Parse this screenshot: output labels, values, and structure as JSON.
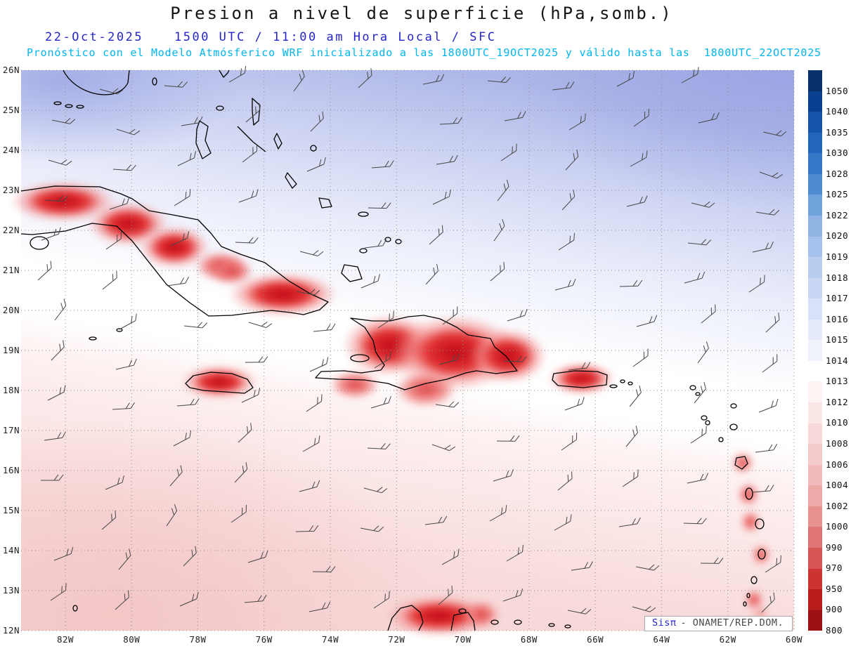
{
  "header": {
    "title": "Presion a nivel de superficie (hPa,somb.)",
    "date": "22-Oct-2025",
    "time": "1500 UTC / 11:00 am Hora Local / SFC",
    "forecast_prefix": "Pronóstico con el Modelo Atmósferico WRF inicializado a las 1800UTC_19OCT2025 y válido hasta las",
    "forecast_valid": "1800UTC_22OCT2025"
  },
  "map": {
    "lat_labels": [
      "26N",
      "25N",
      "24N",
      "23N",
      "22N",
      "21N",
      "20N",
      "19N",
      "18N",
      "17N",
      "16N",
      "15N",
      "14N",
      "13N",
      "12N"
    ],
    "lon_labels": [
      "82W",
      "80W",
      "78W",
      "76W",
      "74W",
      "72W",
      "70W",
      "68W",
      "66W",
      "64W",
      "62W",
      "60W"
    ],
    "units": "hPa"
  },
  "colorbar": {
    "labels": [
      1050,
      1040,
      1035,
      1030,
      1028,
      1025,
      1022,
      1020,
      1019,
      1018,
      1017,
      1016,
      1015,
      1014,
      1013,
      1012,
      1010,
      1008,
      1006,
      1004,
      1002,
      1000,
      990,
      970,
      950,
      900,
      800
    ],
    "colors": [
      "#08306b",
      "#0a3f8f",
      "#1353a8",
      "#2166bc",
      "#3377c6",
      "#4e8bd1",
      "#6fa3dc",
      "#8fb4e4",
      "#a6c2ec",
      "#b8cdf0",
      "#c9d7f4",
      "#d8e1f7",
      "#e6ebfa",
      "#f1f3fc",
      "#ffffff",
      "#fdf3f3",
      "#fbe6e6",
      "#f8d8d8",
      "#f5caca",
      "#f2baba",
      "#eda8a8",
      "#e79191",
      "#e07575",
      "#d85555",
      "#cc3333",
      "#b81c1c",
      "#9c0f12"
    ]
  },
  "chart_data": {
    "type": "heatmap",
    "title": "Presion a nivel de superficie (hPa,somb.)",
    "units": "hPa",
    "x_axis_ticks": [
      "82W",
      "80W",
      "78W",
      "76W",
      "74W",
      "72W",
      "70W",
      "68W",
      "66W",
      "64W",
      "62W",
      "60W"
    ],
    "y_axis_ticks": [
      "26N",
      "25N",
      "24N",
      "23N",
      "22N",
      "21N",
      "20N",
      "19N",
      "18N",
      "17N",
      "16N",
      "15N",
      "14N",
      "13N",
      "12N"
    ],
    "colorbar_levels": [
      1050,
      1040,
      1035,
      1030,
      1028,
      1025,
      1022,
      1020,
      1019,
      1018,
      1017,
      1016,
      1015,
      1014,
      1013,
      1012,
      1010,
      1008,
      1006,
      1004,
      1002,
      1000,
      990,
      970,
      950,
      900,
      800
    ],
    "legend_position": "right",
    "field_summary": "High pressure (1016-1020 hPa, blue) north of 23N; 1013-1014 hPa (white) band across center; 1008-1012 hPa (pink) south; terrain-reduced lows (<1000 hPa, red) over Cuba, Jamaica, Hispaniola, Puerto Rico, Lesser Antilles and northern South America"
  },
  "watermark": {
    "brand": "Sisπ",
    "text": "- ONAMET/REP.DOM."
  },
  "colors": {
    "header_blue": "#2525cd",
    "header_cyan": "#00b4ef",
    "coastline": "#000000",
    "grid": "#8f8f8f",
    "wind_barb": "#474747"
  }
}
